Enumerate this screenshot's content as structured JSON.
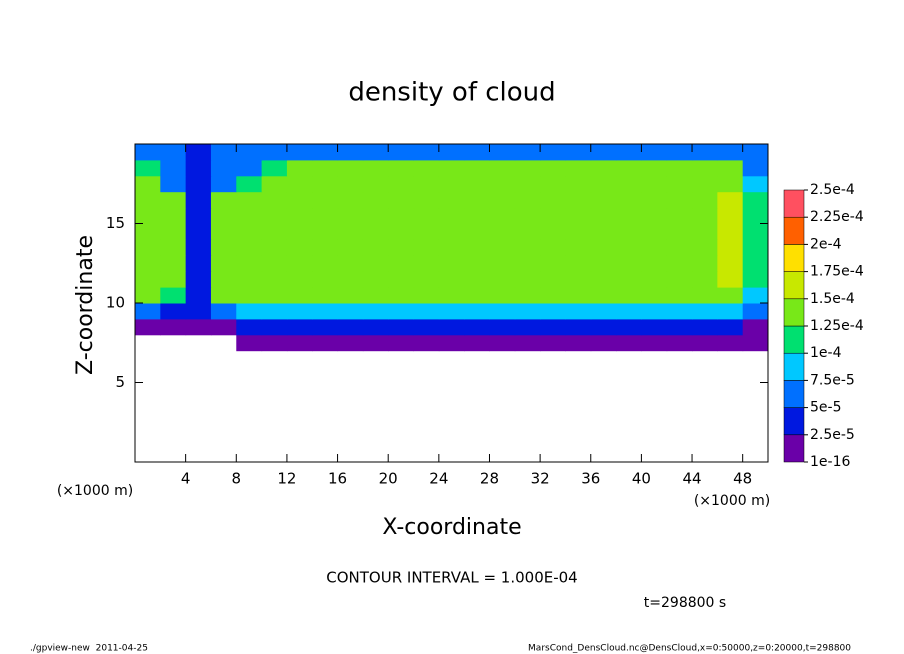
{
  "chart_data": {
    "type": "heatmap",
    "title": "density of cloud",
    "xlabel": "X-coordinate",
    "ylabel": "Z-coordinate",
    "x_unit": "(×1000 m)",
    "contour_note": "CONTOUR INTERVAL = 1.000E-04",
    "time_note": "t=298800 s",
    "footer_left": "./gpview-new  2011-04-25",
    "footer_right": "MarsCond_DensCloud.nc@DensCloud,x=0:50000,z=0:20000,t=298800",
    "xlim": [
      0,
      50
    ],
    "ylim": [
      0,
      20
    ],
    "xticks": [
      4,
      8,
      12,
      16,
      20,
      24,
      28,
      32,
      36,
      40,
      44,
      48
    ],
    "yticks": [
      5,
      10,
      15
    ],
    "x": [
      1,
      3,
      5,
      7,
      9,
      11,
      13,
      15,
      17,
      19,
      21,
      23,
      25,
      27,
      29,
      31,
      33,
      35,
      37,
      39,
      41,
      43,
      45,
      47,
      49
    ],
    "y": [
      7.5,
      8.5,
      9.5,
      10.5,
      11.5,
      12.5,
      13.5,
      14.5,
      15.5,
      16.5,
      17.5,
      18.5,
      19.5
    ],
    "values": [
      [
        null,
        null,
        null,
        null,
        1e-05,
        1e-05,
        1e-05,
        1e-05,
        1e-05,
        1e-05,
        1e-05,
        1e-05,
        1e-05,
        1e-05,
        1e-05,
        1e-05,
        1e-05,
        1e-05,
        1e-05,
        1e-05,
        1e-05,
        1e-05,
        1e-05,
        1e-05,
        1e-05
      ],
      [
        1.5e-05,
        1.5e-05,
        1.5e-05,
        1.5e-05,
        3e-05,
        3e-05,
        3e-05,
        3e-05,
        3e-05,
        3e-05,
        3e-05,
        3e-05,
        3e-05,
        3e-05,
        3e-05,
        3e-05,
        3e-05,
        3e-05,
        3e-05,
        3e-05,
        3e-05,
        3e-05,
        3e-05,
        3e-05,
        2e-05
      ],
      [
        6e-05,
        4e-05,
        3e-05,
        6e-05,
        8e-05,
        8e-05,
        8e-05,
        8e-05,
        8e-05,
        8e-05,
        8e-05,
        8e-05,
        8e-05,
        8e-05,
        8e-05,
        8e-05,
        8e-05,
        8e-05,
        8e-05,
        8e-05,
        8e-05,
        8e-05,
        8e-05,
        8e-05,
        5e-05
      ],
      [
        0.00013,
        0.00011,
        4e-05,
        0.00013,
        0.00013,
        0.00013,
        0.00013,
        0.00013,
        0.00013,
        0.00013,
        0.00013,
        0.00013,
        0.00013,
        0.00013,
        0.00013,
        0.00013,
        0.00013,
        0.00013,
        0.00013,
        0.00013,
        0.00013,
        0.00013,
        0.00013,
        0.00013,
        8e-05
      ],
      [
        0.00014,
        0.00013,
        3e-05,
        0.00013,
        0.000145,
        0.000145,
        0.000145,
        0.000145,
        0.000145,
        0.000145,
        0.000145,
        0.000145,
        0.000145,
        0.000145,
        0.000145,
        0.000145,
        0.000145,
        0.000145,
        0.000145,
        0.000145,
        0.000145,
        0.000145,
        0.000145,
        0.00015,
        0.00011
      ],
      [
        0.00014,
        0.00013,
        3e-05,
        0.00013,
        0.000145,
        0.000145,
        0.000145,
        0.000145,
        0.000145,
        0.000145,
        0.000145,
        0.000145,
        0.000145,
        0.000145,
        0.000145,
        0.000145,
        0.000145,
        0.000145,
        0.000145,
        0.000145,
        0.000145,
        0.000145,
        0.000145,
        0.00015,
        0.00011
      ],
      [
        0.00014,
        0.00013,
        3e-05,
        0.00013,
        0.000145,
        0.000145,
        0.000145,
        0.000145,
        0.000145,
        0.000145,
        0.000145,
        0.000145,
        0.000145,
        0.000145,
        0.000145,
        0.000145,
        0.000145,
        0.000145,
        0.000145,
        0.000145,
        0.000145,
        0.000145,
        0.000145,
        0.00015,
        0.00011
      ],
      [
        0.00014,
        0.00013,
        3e-05,
        0.00013,
        0.000145,
        0.000145,
        0.000145,
        0.000145,
        0.000145,
        0.000145,
        0.000145,
        0.000145,
        0.000145,
        0.000145,
        0.000145,
        0.000145,
        0.000145,
        0.000145,
        0.000145,
        0.000145,
        0.000145,
        0.000145,
        0.000145,
        0.00015,
        0.00011
      ],
      [
        0.00014,
        0.00013,
        3e-05,
        0.00013,
        0.000145,
        0.000145,
        0.000145,
        0.000145,
        0.000145,
        0.000145,
        0.000145,
        0.000145,
        0.000145,
        0.000145,
        0.000145,
        0.000145,
        0.000145,
        0.000145,
        0.000145,
        0.000145,
        0.000145,
        0.000145,
        0.000145,
        0.00015,
        0.00011
      ],
      [
        0.00014,
        0.00013,
        3e-05,
        0.00013,
        0.000145,
        0.000145,
        0.000145,
        0.000145,
        0.000145,
        0.000145,
        0.000145,
        0.000145,
        0.000145,
        0.000145,
        0.000145,
        0.000145,
        0.000145,
        0.000145,
        0.000145,
        0.000145,
        0.000145,
        0.000145,
        0.000145,
        0.00015,
        0.00011
      ],
      [
        0.00013,
        7e-05,
        3e-05,
        6e-05,
        0.00011,
        0.00014,
        0.00014,
        0.00014,
        0.00014,
        0.00014,
        0.00014,
        0.00014,
        0.00014,
        0.00014,
        0.00014,
        0.00014,
        0.00014,
        0.00014,
        0.00014,
        0.00014,
        0.00014,
        0.00014,
        0.00014,
        0.00014,
        9e-05
      ],
      [
        0.00011,
        5e-05,
        3e-05,
        5e-05,
        6e-05,
        0.00011,
        0.00013,
        0.00013,
        0.00013,
        0.00013,
        0.00013,
        0.00013,
        0.00013,
        0.00013,
        0.00013,
        0.00013,
        0.00013,
        0.00013,
        0.00013,
        0.00013,
        0.00013,
        0.00013,
        0.00013,
        0.00013,
        6e-05
      ],
      [
        6e-05,
        5e-05,
        4e-05,
        5e-05,
        6e-05,
        7e-05,
        7e-05,
        7e-05,
        7e-05,
        7e-05,
        7e-05,
        7e-05,
        7e-05,
        7e-05,
        7e-05,
        7e-05,
        7e-05,
        7e-05,
        7e-05,
        7e-05,
        7e-05,
        7e-05,
        7e-05,
        7e-05,
        6e-05
      ]
    ],
    "colorbar": {
      "ticks": [
        {
          "value": 1e-16,
          "label": "1e-16"
        },
        {
          "value": 2.5e-05,
          "label": "2.5e-5"
        },
        {
          "value": 5e-05,
          "label": "5e-5"
        },
        {
          "value": 7.5e-05,
          "label": "7.5e-5"
        },
        {
          "value": 0.0001,
          "label": "1e-4"
        },
        {
          "value": 0.000125,
          "label": "1.25e-4"
        },
        {
          "value": 0.00015,
          "label": "1.5e-4"
        },
        {
          "value": 0.000175,
          "label": "1.75e-4"
        },
        {
          "value": 0.0002,
          "label": "2e-4"
        },
        {
          "value": 0.000225,
          "label": "2.25e-4"
        },
        {
          "value": 0.00025,
          "label": "2.5e-4"
        }
      ],
      "colors": [
        "#6a00a8",
        "#0018e0",
        "#0070ff",
        "#00c8ff",
        "#00e070",
        "#78e818",
        "#c8e800",
        "#ffe000",
        "#ff6000",
        "#ff5060"
      ]
    }
  }
}
